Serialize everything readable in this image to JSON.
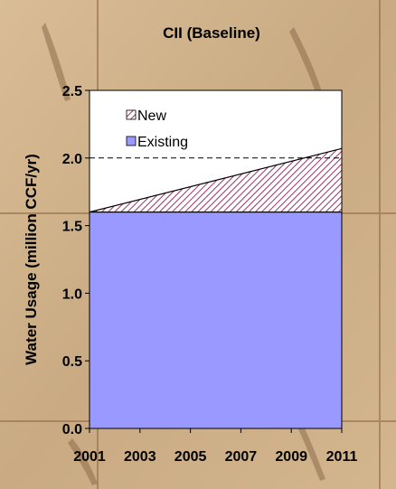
{
  "chart_data": {
    "type": "area",
    "title": "CII (Baseline)",
    "ylabel": "Water Usage  (million CCF/yr)",
    "xlabel": "",
    "x_ticks": [
      "2001",
      "2003",
      "2005",
      "2007",
      "2009",
      "2011"
    ],
    "y_ticks": [
      "0.0",
      "0.5",
      "1.0",
      "1.5",
      "2.0",
      "2.5"
    ],
    "xlim": [
      2001,
      2011
    ],
    "ylim": [
      0,
      2.5
    ],
    "reference_line": {
      "y": 2.0,
      "style": "dashed"
    },
    "series": [
      {
        "name": "Existing",
        "x": [
          2001,
          2011
        ],
        "values": [
          1.6,
          1.6
        ],
        "color": "#9999ff",
        "fill": "solid"
      },
      {
        "name": "New",
        "x": [
          2001,
          2011
        ],
        "values": [
          0.0,
          0.47
        ],
        "color": "#993366",
        "fill": "hatched"
      }
    ],
    "legend": {
      "position": "top-left",
      "items": [
        "New",
        "Existing"
      ]
    },
    "colors": {
      "plot_bg": "#ffffff",
      "page_bg": "#cdb08a"
    }
  }
}
